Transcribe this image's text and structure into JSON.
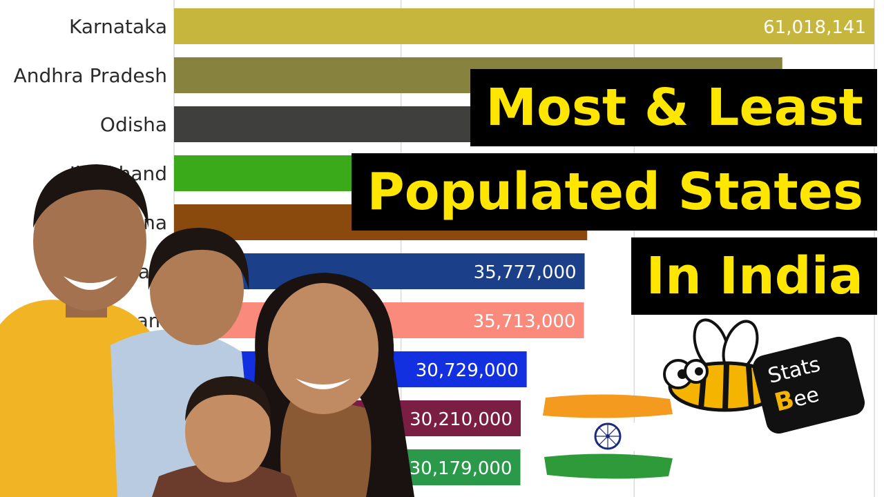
{
  "chart_data": {
    "type": "bar",
    "orientation": "horizontal",
    "title": "",
    "xlabel": "",
    "ylabel": "",
    "grid": true,
    "xlim": [
      0,
      61018141
    ],
    "categories": [
      "Karnataka",
      "Andhra Pradesh",
      "Odisha",
      "Jharkhand",
      "Haryana",
      "Kerala",
      "Assam",
      "",
      "",
      ""
    ],
    "values": [
      61018141,
      53000000,
      44000000,
      38000000,
      36000000,
      35777000,
      35713000,
      30729000,
      30210000,
      30179000
    ],
    "value_labels": [
      "61,018,141",
      "",
      "",
      "",
      "",
      "35,777,000",
      "35,713,000",
      "30,729,000",
      "30,210,000",
      "30,179,000"
    ],
    "colors": [
      "#c6b63e",
      "#87823e",
      "#3f3f3d",
      "#3aaa1a",
      "#8a4a0d",
      "#1b3f88",
      "#f98a7c",
      "#1230e0",
      "#7a1e44",
      "#2a9a4a"
    ]
  },
  "overlay": {
    "title_lines": [
      "Most & Least",
      "Populated States",
      "In India"
    ],
    "logo_text_top": "Stats",
    "logo_text_b": "B",
    "logo_text_rest": "ee",
    "title_color": "#ffe600",
    "title_bg": "#000000"
  }
}
